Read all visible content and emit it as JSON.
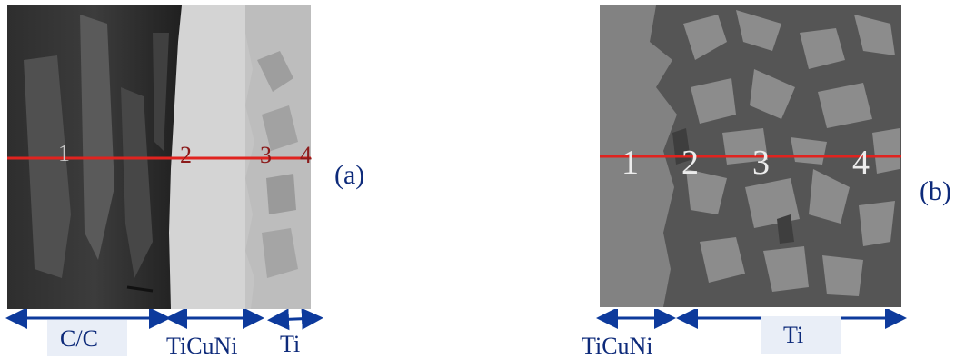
{
  "panel_a": {
    "points": [
      "1",
      "2",
      "3",
      "4"
    ],
    "caption": "(a)",
    "zones": [
      "C/C",
      "TiCuNi",
      "Ti"
    ]
  },
  "panel_b": {
    "points": [
      "1",
      "2",
      "3",
      "4"
    ],
    "caption": "(b)",
    "zones": [
      "TiCuNi",
      "Ti"
    ]
  },
  "colors": {
    "scan_line": "#e0231f",
    "arrow": "#0d3a9c",
    "label_text": "#0d2a7a",
    "zone_label_background": "#e9eef7"
  }
}
